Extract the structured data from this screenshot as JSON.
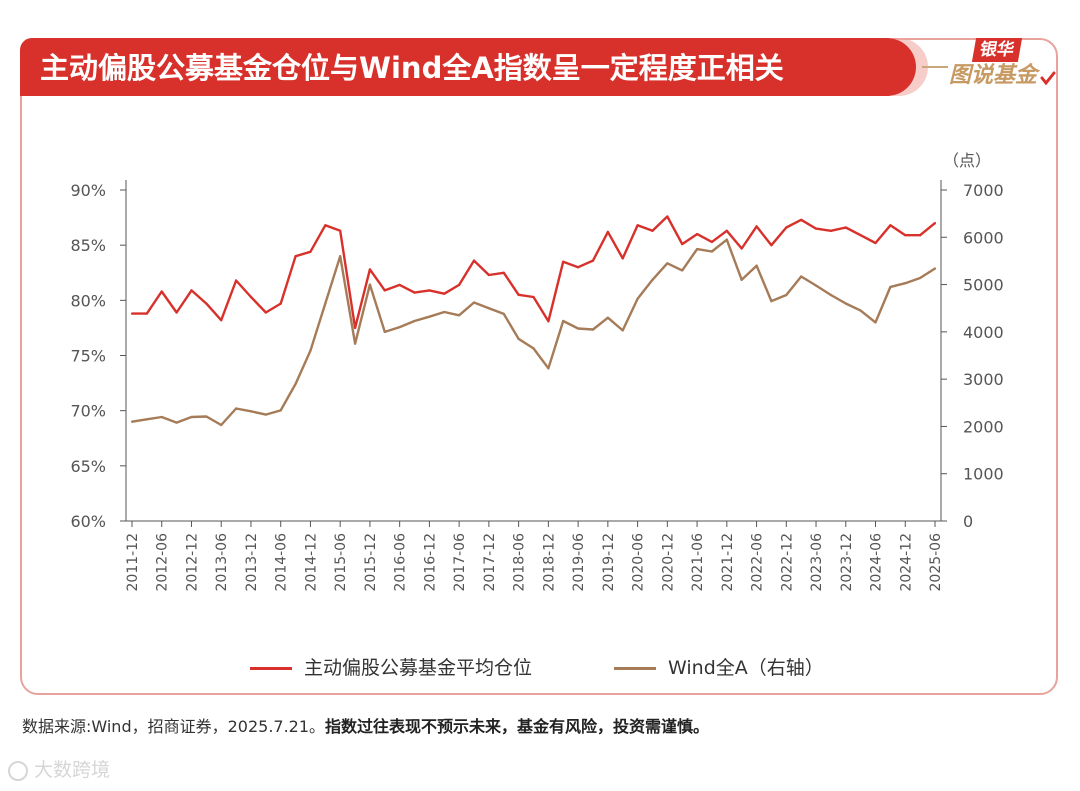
{
  "title": "主动偏股公募基金仓位与Wind全A指数呈一定程度正相关",
  "badge": {
    "top": "银华",
    "bottom": "图说基金"
  },
  "chart_data": {
    "type": "line",
    "categories": [
      "2011-12",
      "2012-03",
      "2012-06",
      "2012-09",
      "2012-12",
      "2013-03",
      "2013-06",
      "2013-09",
      "2013-12",
      "2014-03",
      "2014-06",
      "2014-09",
      "2014-12",
      "2015-03",
      "2015-06",
      "2015-09",
      "2015-12",
      "2016-03",
      "2016-06",
      "2016-09",
      "2016-12",
      "2017-03",
      "2017-06",
      "2017-09",
      "2017-12",
      "2018-03",
      "2018-06",
      "2018-09",
      "2018-12",
      "2019-03",
      "2019-06",
      "2019-09",
      "2019-12",
      "2020-03",
      "2020-06",
      "2020-09",
      "2020-12",
      "2021-03",
      "2021-06",
      "2021-09",
      "2021-12",
      "2022-03",
      "2022-06",
      "2022-09",
      "2022-12",
      "2023-03",
      "2023-06",
      "2023-09",
      "2023-12",
      "2024-03",
      "2024-06",
      "2024-09",
      "2024-12",
      "2025-03",
      "2025-06"
    ],
    "x_tick_labels": [
      "2011-12",
      "2012-06",
      "2012-12",
      "2013-06",
      "2013-12",
      "2014-06",
      "2014-12",
      "2015-06",
      "2015-12",
      "2016-06",
      "2016-12",
      "2017-06",
      "2017-12",
      "2018-06",
      "2018-12",
      "2019-06",
      "2019-12",
      "2020-06",
      "2020-12",
      "2021-06",
      "2021-12",
      "2022-06",
      "2022-12",
      "2023-06",
      "2023-12",
      "2024-06",
      "2024-12",
      "2025-06"
    ],
    "series": [
      {
        "name": "主动偏股公募基金平均仓位",
        "axis": "left",
        "color": "#d8312b",
        "values": [
          78.8,
          78.8,
          80.8,
          78.9,
          80.9,
          79.7,
          78.2,
          81.8,
          80.3,
          78.9,
          79.7,
          84.0,
          84.4,
          86.8,
          86.3,
          77.5,
          82.8,
          80.9,
          81.4,
          80.7,
          80.9,
          80.6,
          81.4,
          83.6,
          82.3,
          82.5,
          80.5,
          80.3,
          78.1,
          83.5,
          83.0,
          83.6,
          86.2,
          83.8,
          86.8,
          86.3,
          87.6,
          85.1,
          86.0,
          85.3,
          86.3,
          84.7,
          86.7,
          85.0,
          86.6,
          87.3,
          86.5,
          86.3,
          86.6,
          85.9,
          85.2,
          86.8,
          85.9,
          85.9,
          87.0
        ]
      },
      {
        "name": "Wind全A（右轴）",
        "axis": "right",
        "color": "#a57b58",
        "values": [
          2100,
          2150,
          2200,
          2080,
          2200,
          2210,
          2030,
          2380,
          2320,
          2250,
          2340,
          2900,
          3600,
          4600,
          5600,
          3750,
          5000,
          4000,
          4100,
          4230,
          4320,
          4420,
          4350,
          4620,
          4500,
          4380,
          3850,
          3650,
          3230,
          4230,
          4070,
          4050,
          4300,
          4030,
          4700,
          5100,
          5450,
          5300,
          5750,
          5700,
          5950,
          5100,
          5400,
          4650,
          4780,
          5170,
          4980,
          4780,
          4600,
          4450,
          4200,
          4950,
          5030,
          5140,
          5340
        ]
      }
    ],
    "y_left": {
      "min": 60,
      "max": 90,
      "step": 5,
      "tick_labels": [
        "90%",
        "85%",
        "80%",
        "75%",
        "70%",
        "65%",
        "60%"
      ]
    },
    "y_right": {
      "min": 0,
      "max": 7000,
      "step": 1000,
      "unit_label": "（点）",
      "tick_labels": [
        "7000",
        "6000",
        "5000",
        "4000",
        "3000",
        "2000",
        "1000",
        "0"
      ]
    },
    "legend": [
      "主动偏股公募基金平均仓位",
      "Wind全A（右轴）"
    ]
  },
  "footnote": {
    "normal": "数据来源:Wind，招商证券，2025.7.21。",
    "bold": "指数过往表现不预示未来，基金有风险，投资需谨慎。"
  },
  "watermark": "大数跨境"
}
